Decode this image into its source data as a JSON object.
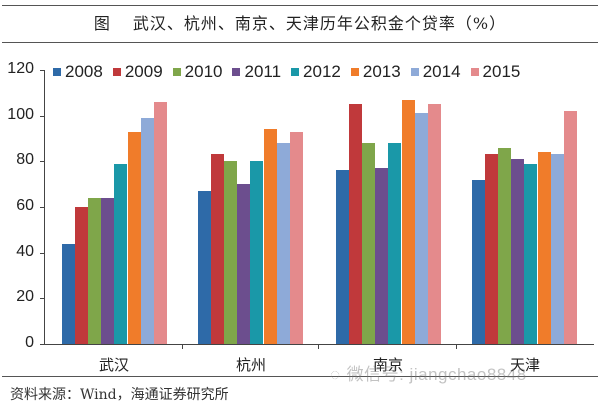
{
  "title": {
    "figure_label": "图",
    "text": "武汉、杭州、南京、天津历年公积金个贷率（%）"
  },
  "source_note": "资料来源：Wind，海通证券研究所",
  "watermark": {
    "icon": "wechat-icon",
    "text": "微信号: jiangchao8848"
  },
  "colors": {
    "2008": "#2e6aa8",
    "2009": "#c0393b",
    "2010": "#7fa64a",
    "2011": "#6c4e8e",
    "2012": "#1a98a8",
    "2013": "#f07c2a",
    "2014": "#8eaad8",
    "2015": "#e48a8c"
  },
  "y_ticks": [
    "0",
    "20",
    "40",
    "60",
    "80",
    "100",
    "120"
  ],
  "chart_data": {
    "type": "bar",
    "title": "武汉、杭州、南京、天津历年公积金个贷率（%）",
    "xlabel": "",
    "ylabel": "%",
    "ylim": [
      0,
      120
    ],
    "yticks": [
      0,
      20,
      40,
      60,
      80,
      100,
      120
    ],
    "grid": false,
    "legend_position": "top",
    "categories": [
      "武汉",
      "杭州",
      "南京",
      "天津"
    ],
    "series": [
      {
        "name": "2008",
        "values": [
          44,
          67,
          76,
          72
        ]
      },
      {
        "name": "2009",
        "values": [
          60,
          83,
          105,
          83
        ]
      },
      {
        "name": "2010",
        "values": [
          64,
          80,
          88,
          86
        ]
      },
      {
        "name": "2011",
        "values": [
          64,
          70,
          77,
          81
        ]
      },
      {
        "name": "2012",
        "values": [
          79,
          80,
          88,
          79
        ]
      },
      {
        "name": "2013",
        "values": [
          93,
          94,
          107,
          84
        ]
      },
      {
        "name": "2014",
        "values": [
          99,
          88,
          101,
          83
        ]
      },
      {
        "name": "2015",
        "values": [
          106,
          93,
          105,
          102
        ]
      }
    ],
    "source": "资料来源：Wind，海通证券研究所"
  }
}
